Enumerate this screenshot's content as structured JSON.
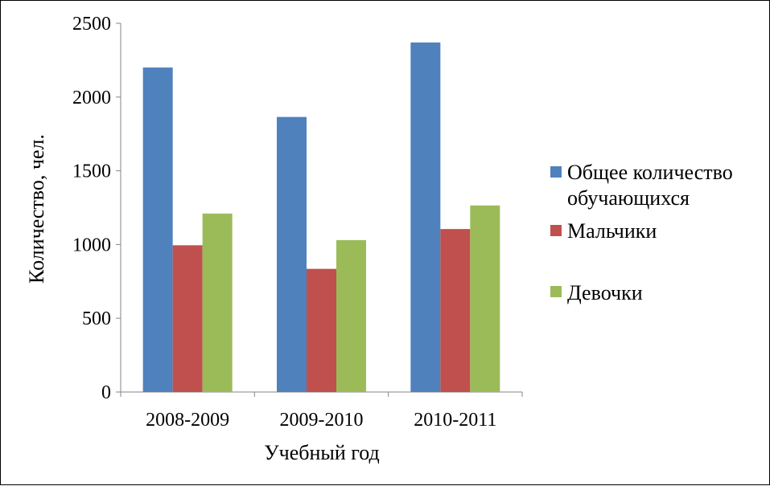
{
  "chart_data": {
    "type": "bar",
    "categories": [
      "2008-2009",
      "2009-2010",
      "2010-2011"
    ],
    "series": [
      {
        "name": "Общее количество обучающихся",
        "legend_lines": [
          "Общее количество",
          "обучающихся"
        ],
        "color": "#4F81BD",
        "values": [
          2200,
          1865,
          2370
        ]
      },
      {
        "name": "Мальчики",
        "legend_lines": [
          "Мальчики"
        ],
        "color": "#C0504D",
        "values": [
          995,
          835,
          1105
        ]
      },
      {
        "name": "Девочки",
        "legend_lines": [
          "Девочки"
        ],
        "color": "#9BBB59",
        "values": [
          1210,
          1030,
          1265
        ]
      }
    ],
    "xlabel": "Учебный год",
    "ylabel": "Количество, чел.",
    "ylim": [
      0,
      2500
    ],
    "yticks": [
      "0",
      "500",
      "1000",
      "1500",
      "2000",
      "2500"
    ],
    "grid": false,
    "legend_position": "right"
  }
}
